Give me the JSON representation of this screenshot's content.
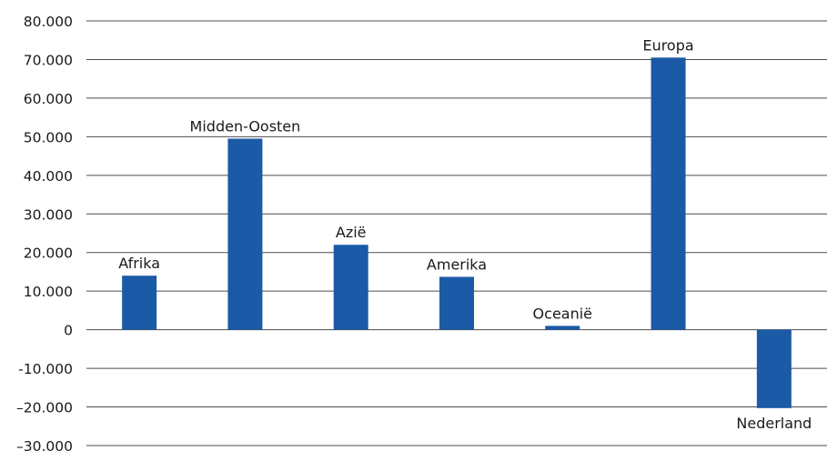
{
  "chart_data": {
    "type": "bar",
    "categories": [
      "Afrika",
      "Midden-Oosten",
      "Azië",
      "Amerika",
      "Oceanië",
      "Europa",
      "Nederland"
    ],
    "values": [
      14000,
      49500,
      22000,
      13700,
      1000,
      70500,
      -20300
    ],
    "ylim": [
      -30000,
      80000
    ],
    "yticks": [
      80000,
      70000,
      60000,
      50000,
      40000,
      30000,
      20000,
      10000,
      0,
      -10000,
      -20000,
      -30000
    ],
    "ytick_labels": [
      "80.000",
      "70.000",
      "60.000",
      "50.000",
      "40.000",
      "30.000",
      "20.000",
      "10.000",
      "0",
      "-10.000",
      "–20.000",
      "–30.000"
    ],
    "grid": true,
    "legend": "none",
    "bar_color": "#1b5aa6",
    "grid_color": "#4d4d4d"
  }
}
